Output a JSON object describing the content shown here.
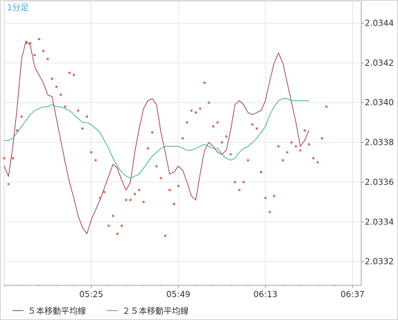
{
  "chart_data": {
    "type": "line",
    "timeframe_label": "1分足",
    "x_tick_labels": [
      "05:25",
      "05:49",
      "06:13",
      "06:37"
    ],
    "y_tick_labels": [
      "2.0344",
      "2.0342",
      "2.0340",
      "2.0338",
      "2.0336",
      "2.0334",
      "2.0332"
    ],
    "ylim": [
      2.03308,
      2.03451
    ],
    "x_count": 83,
    "x_ticks_index": [
      20,
      40,
      60,
      80
    ],
    "grid": true,
    "legend_position": "bottom-left",
    "colors": {
      "price_dots": "#d9663f",
      "ma5": "#a0344e",
      "ma25": "#2fae8e",
      "grid": "#e6e6e6",
      "axis": "#999999",
      "timeframe_label": "#3aaedc",
      "background": "#ffffff"
    },
    "series": [
      {
        "name": "５本移動平均線",
        "values": [
          2.03368,
          2.03363,
          2.03378,
          2.03398,
          2.03422,
          2.03431,
          2.03429,
          2.03418,
          2.03414,
          2.0341,
          2.03404,
          2.03403,
          2.03392,
          2.03381,
          2.0337,
          2.0336,
          2.03352,
          2.03343,
          2.03337,
          2.03334,
          2.03341,
          2.03346,
          2.03351,
          2.03357,
          2.03363,
          2.03369,
          2.03367,
          2.03361,
          2.03356,
          2.0336,
          2.03375,
          2.03387,
          2.03397,
          2.03401,
          2.03402,
          2.03399,
          2.03385,
          2.03375,
          2.03364,
          2.03365,
          2.03368,
          2.03366,
          2.0336,
          2.03353,
          2.03351,
          2.03364,
          2.03376,
          2.0338,
          2.03378,
          2.03375,
          2.03374,
          2.03376,
          2.03386,
          2.03399,
          2.03401,
          2.03399,
          2.03395,
          2.03394,
          2.03395,
          2.03396,
          2.03401,
          2.03411,
          2.0342,
          2.03425,
          2.0342,
          2.0341,
          2.034,
          2.0339,
          2.03378,
          2.03381,
          2.03386
        ],
        "x_start_index": 0
      },
      {
        "name": "２５本移動平均線",
        "values": [
          2.03381,
          2.03381,
          2.03382,
          2.03385,
          2.03388,
          2.03391,
          2.03394,
          2.03396,
          2.03397,
          2.03398,
          2.03398,
          2.03399,
          2.03398,
          2.03398,
          2.03397,
          2.03396,
          2.03394,
          2.03392,
          2.0339,
          2.0339,
          2.03389,
          2.03387,
          2.03385,
          2.03381,
          2.03377,
          2.03372,
          2.03368,
          2.03365,
          2.03363,
          2.03362,
          2.03363,
          2.03364,
          2.03367,
          2.0337,
          2.03373,
          2.03375,
          2.03377,
          2.03378,
          2.03378,
          2.03378,
          2.03378,
          2.03377,
          2.03376,
          2.03376,
          2.03377,
          2.03378,
          2.03379,
          2.03378,
          2.03377,
          2.03377,
          2.03374,
          2.03372,
          2.03371,
          2.03372,
          2.03375,
          2.03377,
          2.03378,
          2.0338,
          2.03382,
          2.03385,
          2.03388,
          2.03394,
          2.03398,
          2.03401,
          2.03402,
          2.03402,
          2.03401,
          2.03401,
          2.03401,
          2.03401,
          2.03401
        ],
        "x_start_index": 0
      }
    ],
    "price_points": [
      {
        "x": 0,
        "y": 2.03372
      },
      {
        "x": 1,
        "y": 2.03359
      },
      {
        "x": 2,
        "y": 2.03372
      },
      {
        "x": 3,
        "y": 2.03386
      },
      {
        "x": 4,
        "y": 2.03393
      },
      {
        "x": 5,
        "y": 2.0343
      },
      {
        "x": 6,
        "y": 2.0343
      },
      {
        "x": 7,
        "y": 2.03424
      },
      {
        "x": 8,
        "y": 2.03432
      },
      {
        "x": 9,
        "y": 2.03426
      },
      {
        "x": 10,
        "y": 2.03422
      },
      {
        "x": 11,
        "y": 2.03412
      },
      {
        "x": 12,
        "y": 2.03408
      },
      {
        "x": 13,
        "y": 2.03404
      },
      {
        "x": 14,
        "y": 2.03398
      },
      {
        "x": 15,
        "y": 2.03415
      },
      {
        "x": 16,
        "y": 2.03414
      },
      {
        "x": 17,
        "y": 2.03396
      },
      {
        "x": 18,
        "y": 2.03387
      },
      {
        "x": 19,
        "y": 2.03393
      },
      {
        "x": 20,
        "y": 2.03375
      },
      {
        "x": 21,
        "y": 2.03371
      },
      {
        "x": 22,
        "y": 2.03352
      },
      {
        "x": 23,
        "y": 2.03355
      },
      {
        "x": 24,
        "y": 2.03338
      },
      {
        "x": 25,
        "y": 2.03343
      },
      {
        "x": 26,
        "y": 2.03334
      },
      {
        "x": 27,
        "y": 2.03338
      },
      {
        "x": 28,
        "y": 2.03351
      },
      {
        "x": 29,
        "y": 2.03351
      },
      {
        "x": 30,
        "y": 2.03354
      },
      {
        "x": 31,
        "y": 2.03356
      },
      {
        "x": 32,
        "y": 2.0335
      },
      {
        "x": 33,
        "y": 2.03377
      },
      {
        "x": 34,
        "y": 2.03385
      },
      {
        "x": 35,
        "y": 2.03368
      },
      {
        "x": 36,
        "y": 2.03362
      },
      {
        "x": 37,
        "y": 2.03333
      },
      {
        "x": 38,
        "y": 2.03356
      },
      {
        "x": 39,
        "y": 2.03349
      },
      {
        "x": 40,
        "y": 2.03358
      },
      {
        "x": 41,
        "y": 2.03382
      },
      {
        "x": 42,
        "y": 2.0339
      },
      {
        "x": 43,
        "y": 2.03396
      },
      {
        "x": 44,
        "y": 2.03395
      },
      {
        "x": 45,
        "y": 2.03397
      },
      {
        "x": 46,
        "y": 2.0341
      },
      {
        "x": 47,
        "y": 2.034
      },
      {
        "x": 48,
        "y": 2.03388
      },
      {
        "x": 49,
        "y": 2.0339
      },
      {
        "x": 50,
        "y": 2.0338
      },
      {
        "x": 51,
        "y": 2.03383
      },
      {
        "x": 52,
        "y": 2.03374
      },
      {
        "x": 53,
        "y": 2.0336
      },
      {
        "x": 54,
        "y": 2.03356
      },
      {
        "x": 55,
        "y": 2.0336
      },
      {
        "x": 56,
        "y": 2.03371
      },
      {
        "x": 57,
        "y": 2.03389
      },
      {
        "x": 58,
        "y": 2.03387
      },
      {
        "x": 59,
        "y": 2.03365
      },
      {
        "x": 60,
        "y": 2.03352
      },
      {
        "x": 61,
        "y": 2.03345
      },
      {
        "x": 62,
        "y": 2.03353
      },
      {
        "x": 63,
        "y": 2.03378
      },
      {
        "x": 64,
        "y": 2.03371
      },
      {
        "x": 65,
        "y": 2.03375
      },
      {
        "x": 66,
        "y": 2.0338
      },
      {
        "x": 67,
        "y": 2.03378
      },
      {
        "x": 68,
        "y": 2.03376
      },
      {
        "x": 69,
        "y": 2.03386
      },
      {
        "x": 70,
        "y": 2.03379
      },
      {
        "x": 71,
        "y": 2.03372
      },
      {
        "x": 72,
        "y": 2.0337
      },
      {
        "x": 73,
        "y": 2.03382
      },
      {
        "x": 74,
        "y": 2.03398
      }
    ]
  },
  "legend": {
    "items": [
      {
        "label": "５本移動平均線",
        "color": "#a0344e"
      },
      {
        "label": "２５本移動平均線",
        "color": "#2fae8e"
      }
    ]
  }
}
